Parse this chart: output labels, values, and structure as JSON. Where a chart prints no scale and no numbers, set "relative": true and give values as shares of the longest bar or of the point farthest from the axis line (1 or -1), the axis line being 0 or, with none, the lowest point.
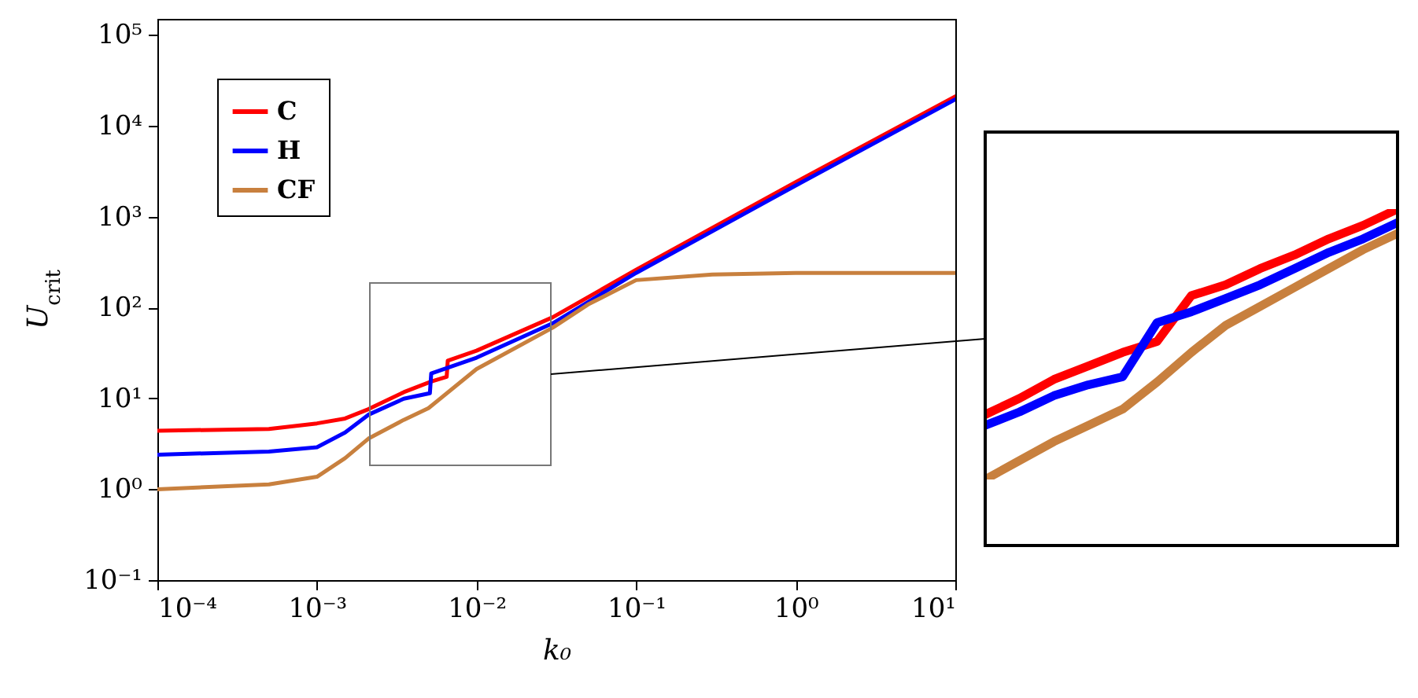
{
  "chart_data": [
    {
      "type": "line",
      "xlabel": "k₀",
      "ylabel": "U$_{crit}$",
      "log": "xy",
      "grid": false,
      "legend": "top left",
      "marker": "none",
      "line_style": "solid",
      "xlim": [
        0.0001,
        10
      ],
      "ylim": [
        0.1,
        150000
      ],
      "xticks": [
        {
          "value": 0.0001,
          "label": "10⁻⁴"
        },
        {
          "value": 0.001,
          "label": "10⁻³"
        },
        {
          "value": 0.01,
          "label": "10⁻²"
        },
        {
          "value": 0.1,
          "label": "10⁻¹"
        },
        {
          "value": 1,
          "label": "10⁰"
        },
        {
          "value": 10,
          "label": "10¹"
        }
      ],
      "yticks": [
        {
          "value": 0.1,
          "label": "10⁻¹"
        },
        {
          "value": 1,
          "label": "10⁰"
        },
        {
          "value": 10,
          "label": "10¹"
        },
        {
          "value": 100,
          "label": "10²"
        },
        {
          "value": 1000,
          "label": "10³"
        },
        {
          "value": 10000,
          "label": "10⁴"
        },
        {
          "value": 100000,
          "label": "10⁵"
        }
      ],
      "series": [
        {
          "name": "C",
          "color": "#ff0000",
          "x": [
            0.0001,
            0.0005,
            0.001,
            0.0015,
            0.0021,
            0.0035,
            0.0052,
            0.0065,
            0.0066,
            0.01,
            0.03,
            0.1,
            1,
            10
          ],
          "values": [
            4.4,
            4.6,
            5.3,
            6.0,
            7.6,
            11.7,
            15.3,
            17.3,
            26,
            33.5,
            78,
            260,
            2400,
            21000
          ]
        },
        {
          "name": "H",
          "color": "#0000ff",
          "x": [
            0.0001,
            0.0005,
            0.001,
            0.0015,
            0.0021,
            0.0035,
            0.0051,
            0.0052,
            0.01,
            0.03,
            0.1,
            1,
            10
          ],
          "values": [
            2.4,
            2.6,
            2.9,
            4.2,
            6.6,
            9.9,
            11.4,
            18.8,
            28,
            67,
            240,
            2200,
            19500
          ]
        },
        {
          "name": "CF",
          "color": "#c8803e",
          "x": [
            0.0001,
            0.0005,
            0.001,
            0.0015,
            0.0021,
            0.0035,
            0.005,
            0.01,
            0.03,
            0.05,
            0.1,
            0.3,
            1,
            10
          ],
          "values": [
            1.0,
            1.13,
            1.37,
            2.2,
            3.6,
            5.8,
            7.8,
            21,
            60,
            108,
            200,
            230,
            240,
            240
          ]
        }
      ]
    },
    {
      "type": "line",
      "relative": true,
      "marker": "none",
      "line_style": "solid",
      "categories": [
        null,
        null,
        null,
        null,
        null,
        null,
        null,
        null,
        null,
        null,
        null,
        null,
        null
      ],
      "series": [
        {
          "color": "#ff0000",
          "values": [
            0.24,
            0.3,
            0.37,
            0.42,
            0.47,
            0.51,
            0.68,
            0.72,
            0.78,
            0.83,
            0.89,
            0.94,
            1.0
          ]
        },
        {
          "color": "#0000ff",
          "values": [
            0.2,
            0.25,
            0.31,
            0.35,
            0.38,
            0.58,
            0.62,
            0.67,
            0.72,
            0.78,
            0.84,
            0.89,
            0.95
          ]
        },
        {
          "color": "#c8803e",
          "values": [
            0.0,
            0.07,
            0.14,
            0.2,
            0.26,
            0.36,
            0.47,
            0.57,
            0.64,
            0.71,
            0.78,
            0.85,
            0.91
          ]
        }
      ]
    }
  ]
}
